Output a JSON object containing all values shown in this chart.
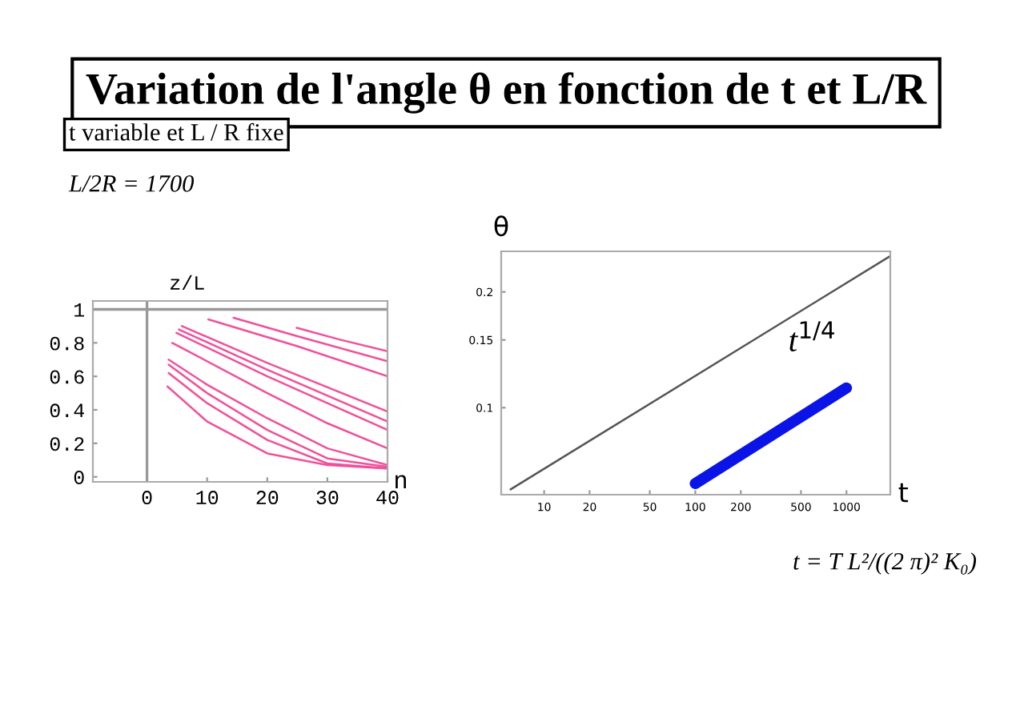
{
  "chart_data": [
    {
      "type": "line",
      "title": "Variation de l'angle θ en fonction de t et L/R",
      "subtitle": "t variable et L / R fixe",
      "annotations": [
        "L/2R = 1700"
      ],
      "xlabel": "n",
      "ylabel": "z/L",
      "xlim": [
        -9,
        40
      ],
      "ylim": [
        -0.03,
        1.05
      ],
      "xticks": [
        0,
        10,
        20,
        30,
        40
      ],
      "yticks": [
        0,
        0.2,
        0.4,
        0.6,
        0.8,
        1
      ],
      "grid": false,
      "ref_lines": [
        {
          "axis": "y",
          "value": 1,
          "color": "#999999"
        },
        {
          "axis": "x",
          "value": 0,
          "color": "#999999"
        }
      ],
      "series": [
        {
          "color": "#f0509a",
          "x": [
            24.9,
            32,
            40
          ],
          "values": [
            0.89,
            0.82,
            0.75
          ]
        },
        {
          "color": "#f0509a",
          "x": [
            14.4,
            25,
            40
          ],
          "values": [
            0.95,
            0.84,
            0.69
          ]
        },
        {
          "color": "#f0509a",
          "x": [
            10.2,
            25,
            40
          ],
          "values": [
            0.94,
            0.78,
            0.6
          ]
        },
        {
          "color": "#f0509a",
          "x": [
            5.8,
            20,
            40
          ],
          "values": [
            0.9,
            0.68,
            0.39
          ]
        },
        {
          "color": "#f0509a",
          "x": [
            5.3,
            20,
            40
          ],
          "values": [
            0.88,
            0.64,
            0.33
          ]
        },
        {
          "color": "#f0509a",
          "x": [
            4.9,
            20,
            40
          ],
          "values": [
            0.86,
            0.6,
            0.28
          ]
        },
        {
          "color": "#f0509a",
          "x": [
            4.2,
            20,
            30,
            40
          ],
          "values": [
            0.8,
            0.5,
            0.32,
            0.17
          ]
        },
        {
          "color": "#f0509a",
          "x": [
            3.6,
            10,
            20,
            30,
            40
          ],
          "values": [
            0.7,
            0.55,
            0.35,
            0.17,
            0.07
          ]
        },
        {
          "color": "#f0509a",
          "x": [
            3.6,
            10,
            20,
            30,
            40
          ],
          "values": [
            0.67,
            0.5,
            0.28,
            0.11,
            0.06
          ]
        },
        {
          "color": "#f0509a",
          "x": [
            3.6,
            10,
            15,
            20,
            30,
            40
          ],
          "values": [
            0.62,
            0.44,
            0.33,
            0.22,
            0.08,
            0.05
          ]
        },
        {
          "color": "#f0509a",
          "x": [
            3.4,
            10,
            20,
            30,
            40
          ],
          "values": [
            0.54,
            0.33,
            0.14,
            0.07,
            0.05
          ]
        }
      ]
    },
    {
      "type": "line",
      "log": "xy",
      "xlabel": "t",
      "ylabel": "θ",
      "xlim": [
        5.2,
        1950
      ],
      "ylim": [
        0.0594,
        0.255
      ],
      "xticks": [
        10,
        20,
        50,
        100,
        200,
        500,
        1000
      ],
      "yticks": [
        0.1,
        0.15,
        0.2
      ],
      "grid": false,
      "annotations": [
        "t$^{1/4}$",
        "t = T L²/((2 π)² K₀)"
      ],
      "series": [
        {
          "color": "#555555",
          "x": [
            6.0,
            1920
          ],
          "values": [
            0.0613,
            0.247
          ]
        },
        {
          "color": "#0a14e6",
          "x": [
            100,
            1000
          ],
          "values": [
            0.0635,
            0.1125
          ]
        }
      ]
    }
  ]
}
